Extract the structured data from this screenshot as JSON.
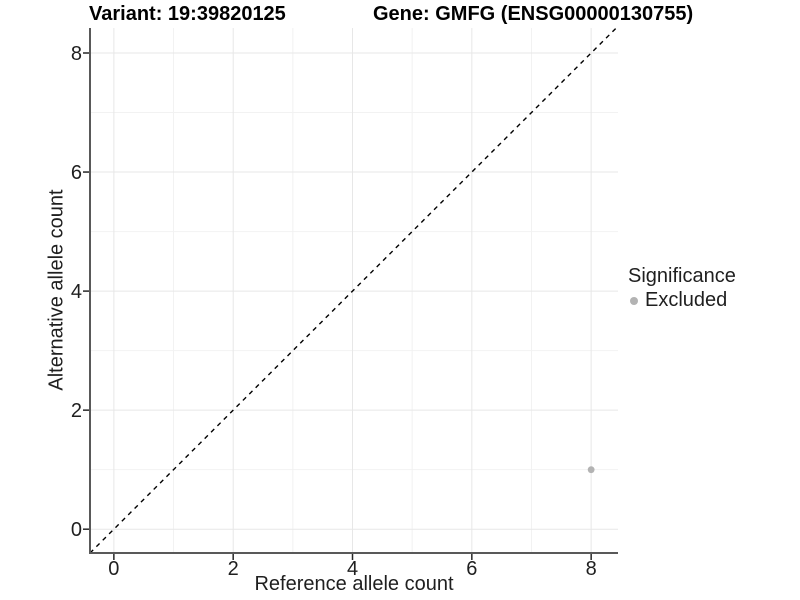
{
  "chart_data": {
    "type": "scatter",
    "title_variant": "Variant: 19:39820125",
    "title_gene": "Gene: GMFG (ENSG00000130755)",
    "xlabel": "Reference allele count",
    "ylabel": "Alternative allele count",
    "xlim": [
      -0.4,
      8.45
    ],
    "ylim": [
      -0.4,
      8.42
    ],
    "x_major_ticks": [
      0,
      2,
      4,
      6,
      8
    ],
    "x_minor_ticks": [
      1,
      3,
      5,
      7
    ],
    "y_major_ticks": [
      0,
      2,
      4,
      6,
      8
    ],
    "y_minor_ticks": [
      1,
      3,
      5,
      7
    ],
    "grid": true,
    "points": [
      {
        "x": 8,
        "y": 1,
        "significance": "Excluded"
      }
    ],
    "reference_line": {
      "slope": 1,
      "intercept": 0,
      "style": "dashed",
      "color": "#000000"
    },
    "legend": {
      "position": "right",
      "title": "Significance",
      "items": [
        {
          "label": "Excluded",
          "color": "#b3b3b3",
          "marker": "circle"
        }
      ]
    },
    "colors": {
      "point": "#b3b3b3",
      "grid_major": "#e7e7e7",
      "grid_minor": "#f2f2f2",
      "axis_line": "#595959",
      "tick_mark": "#262626",
      "text": "#1f1f1f",
      "title": "#000000",
      "background": "#ffffff"
    }
  }
}
